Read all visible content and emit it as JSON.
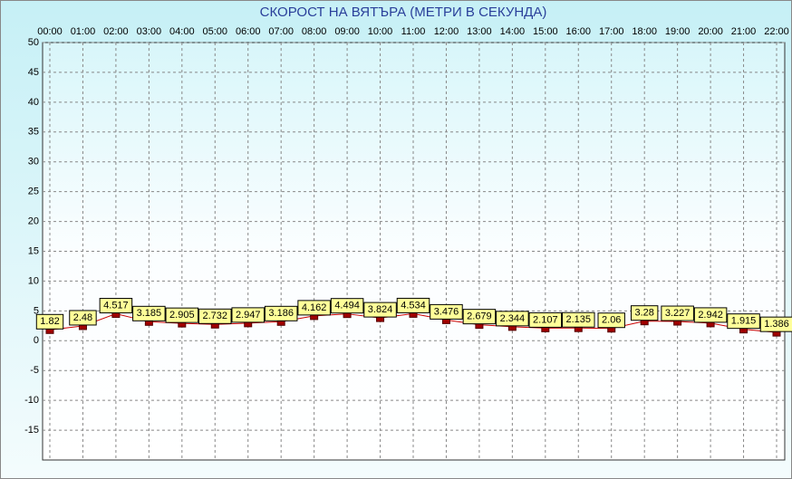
{
  "chart_data": {
    "type": "line",
    "title": "СКОРОСТ НА ВЯТЪРА (МЕТРИ В СЕКУНДА)",
    "categories": [
      "00:00",
      "01:00",
      "02:00",
      "03:00",
      "04:00",
      "05:00",
      "06:00",
      "07:00",
      "08:00",
      "09:00",
      "10:00",
      "11:00",
      "12:00",
      "13:00",
      "14:00",
      "15:00",
      "16:00",
      "17:00",
      "18:00",
      "19:00",
      "20:00",
      "21:00",
      "22:00"
    ],
    "series": [
      {
        "color": "#cc0000",
        "values": [
          1.82,
          2.48,
          4.517,
          3.185,
          2.905,
          2.732,
          2.947,
          3.186,
          4.162,
          4.494,
          3.824,
          4.534,
          3.476,
          2.679,
          2.344,
          2.107,
          2.135,
          2.06,
          3.28,
          3.227,
          2.942,
          1.915,
          1.386
        ]
      }
    ],
    "ylim": [
      -20,
      50
    ],
    "yticks": [
      -15,
      -10,
      -5,
      0,
      5,
      10,
      15,
      20,
      25,
      30,
      35,
      40,
      45,
      50
    ],
    "grid": true
  }
}
